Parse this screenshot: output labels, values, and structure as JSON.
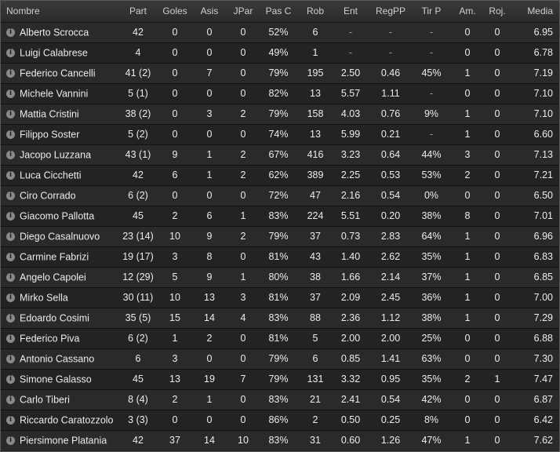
{
  "columns": [
    "Nombre",
    "Part",
    "Goles",
    "Asis",
    "JPar",
    "Pas C",
    "Rob",
    "Ent",
    "RegPP",
    "Tir P",
    "Am.",
    "Roj.",
    "Media"
  ],
  "players": [
    [
      "Alberto Scrocca",
      "42",
      "0",
      "0",
      "0",
      "52%",
      "6",
      "-",
      "-",
      "-",
      "0",
      "0",
      "6.95"
    ],
    [
      "Luigi Calabrese",
      "4",
      "0",
      "0",
      "0",
      "49%",
      "1",
      "-",
      "-",
      "-",
      "0",
      "0",
      "6.78"
    ],
    [
      "Federico Cancelli",
      "41 (2)",
      "0",
      "7",
      "0",
      "79%",
      "195",
      "2.50",
      "0.46",
      "45%",
      "1",
      "0",
      "7.19"
    ],
    [
      "Michele Vannini",
      "5 (1)",
      "0",
      "0",
      "0",
      "82%",
      "13",
      "5.57",
      "1.11",
      "-",
      "0",
      "0",
      "7.10"
    ],
    [
      "Mattia Cristini",
      "38 (2)",
      "0",
      "3",
      "2",
      "79%",
      "158",
      "4.03",
      "0.76",
      "9%",
      "1",
      "0",
      "7.10"
    ],
    [
      "Filippo Soster",
      "5 (2)",
      "0",
      "0",
      "0",
      "74%",
      "13",
      "5.99",
      "0.21",
      "-",
      "1",
      "0",
      "6.60"
    ],
    [
      "Jacopo Luzzana",
      "43 (1)",
      "9",
      "1",
      "2",
      "67%",
      "416",
      "3.23",
      "0.64",
      "44%",
      "3",
      "0",
      "7.13"
    ],
    [
      "Luca Cicchetti",
      "42",
      "6",
      "1",
      "2",
      "62%",
      "389",
      "2.25",
      "0.53",
      "53%",
      "2",
      "0",
      "7.21"
    ],
    [
      "Ciro Corrado",
      "6 (2)",
      "0",
      "0",
      "0",
      "72%",
      "47",
      "2.16",
      "0.54",
      "0%",
      "0",
      "0",
      "6.50"
    ],
    [
      "Giacomo Pallotta",
      "45",
      "2",
      "6",
      "1",
      "83%",
      "224",
      "5.51",
      "0.20",
      "38%",
      "8",
      "0",
      "7.01"
    ],
    [
      "Diego Casalnuovo",
      "23 (14)",
      "10",
      "9",
      "2",
      "79%",
      "37",
      "0.73",
      "2.83",
      "64%",
      "1",
      "0",
      "6.96"
    ],
    [
      "Carmine Fabrizi",
      "19 (17)",
      "3",
      "8",
      "0",
      "81%",
      "43",
      "1.40",
      "2.62",
      "35%",
      "1",
      "0",
      "6.83"
    ],
    [
      "Angelo Capolei",
      "12 (29)",
      "5",
      "9",
      "1",
      "80%",
      "38",
      "1.66",
      "2.14",
      "37%",
      "1",
      "0",
      "6.85"
    ],
    [
      "Mirko Sella",
      "30 (11)",
      "10",
      "13",
      "3",
      "81%",
      "37",
      "2.09",
      "2.45",
      "36%",
      "1",
      "0",
      "7.00"
    ],
    [
      "Edoardo Cosimi",
      "35 (5)",
      "15",
      "14",
      "4",
      "83%",
      "88",
      "2.36",
      "1.12",
      "38%",
      "1",
      "0",
      "7.29"
    ],
    [
      "Federico Piva",
      "6 (2)",
      "1",
      "2",
      "0",
      "81%",
      "5",
      "2.00",
      "2.00",
      "25%",
      "0",
      "0",
      "6.88"
    ],
    [
      "Antonio Cassano",
      "6",
      "3",
      "0",
      "0",
      "79%",
      "6",
      "0.85",
      "1.41",
      "63%",
      "0",
      "0",
      "7.30"
    ],
    [
      "Simone Galasso",
      "45",
      "13",
      "19",
      "7",
      "79%",
      "131",
      "3.32",
      "0.95",
      "35%",
      "2",
      "1",
      "7.47"
    ],
    [
      "Carlo Tiberi",
      "8 (4)",
      "2",
      "1",
      "0",
      "83%",
      "21",
      "2.41",
      "0.54",
      "42%",
      "0",
      "0",
      "6.87"
    ],
    [
      "Riccardo Caratozzolo",
      "3 (3)",
      "0",
      "0",
      "0",
      "86%",
      "2",
      "0.50",
      "0.25",
      "8%",
      "0",
      "0",
      "6.42"
    ],
    [
      "Piersimone Platania",
      "42",
      "37",
      "14",
      "10",
      "83%",
      "31",
      "0.60",
      "1.26",
      "47%",
      "1",
      "0",
      "7.62"
    ]
  ],
  "info_icon_glyph": "i"
}
